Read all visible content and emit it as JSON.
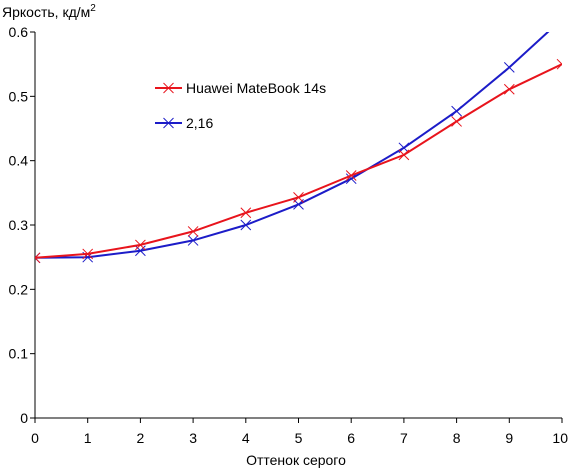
{
  "chart_data": {
    "type": "line",
    "ylabel_main": "Яркость, кд/м",
    "ylabel_sup": "2",
    "xlabel": "Оттенок серого",
    "x": [
      0,
      1,
      2,
      3,
      4,
      5,
      6,
      7,
      8,
      9,
      10
    ],
    "xlim": [
      0,
      10
    ],
    "ylim": [
      0,
      0.6
    ],
    "x_ticks": [
      "0",
      "1",
      "2",
      "3",
      "4",
      "5",
      "6",
      "7",
      "8",
      "9",
      "10"
    ],
    "y_ticks": [
      "0",
      "0.1",
      "0.2",
      "0.3",
      "0.4",
      "0.5",
      "0.6"
    ],
    "y_tick_values": [
      0,
      0.1,
      0.2,
      0.3,
      0.4,
      0.5,
      0.6
    ],
    "grid": false,
    "legend_position": "upper-left inside plot",
    "series": [
      {
        "name": "Huawei MateBook 14s",
        "color": "#e8141c",
        "marker": "x",
        "values": [
          0.249,
          0.255,
          0.269,
          0.29,
          0.319,
          0.343,
          0.377,
          0.409,
          0.461,
          0.511,
          0.55
        ]
      },
      {
        "name": "2,16",
        "color": "#1c1cc8",
        "marker": "x",
        "values": [
          0.249,
          0.25,
          0.26,
          0.276,
          0.3,
          0.332,
          0.372,
          0.42,
          0.477,
          0.545,
          0.62
        ]
      }
    ]
  }
}
